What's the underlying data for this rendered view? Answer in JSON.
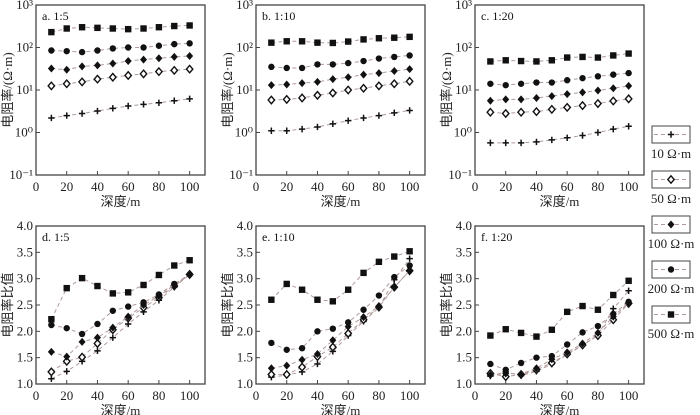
{
  "chart_data": [
    {
      "type": "line",
      "id": "a",
      "title": "a. 1:5",
      "xlabel": "深度/m",
      "ylabel": "电阻率/(Ω·m)",
      "yscale": "log",
      "xlim": [
        0,
        110
      ],
      "ylim": [
        0.1,
        1000
      ],
      "x": [
        10,
        20,
        30,
        40,
        50,
        60,
        70,
        80,
        90,
        100
      ],
      "xticks": [
        "0",
        "20",
        "40",
        "60",
        "80",
        "100"
      ],
      "yticks": [
        "10⁻¹",
        "10⁰",
        "10¹",
        "10²",
        "10³"
      ],
      "series": [
        {
          "name": "10 Ω·m",
          "marker": "plus",
          "values": [
            2.2,
            2.5,
            2.8,
            3.2,
            3.7,
            4.2,
            4.6,
            5.0,
            5.6,
            6.2
          ]
        },
        {
          "name": "50 Ω·m",
          "marker": "open-diamond",
          "values": [
            12.5,
            14,
            15.5,
            18,
            20,
            22,
            24,
            27,
            29,
            31
          ]
        },
        {
          "name": "100 Ω·m",
          "marker": "diamond",
          "values": [
            32,
            30,
            36,
            38,
            42,
            48,
            52,
            56,
            60,
            63
          ]
        },
        {
          "name": "200 Ω·m",
          "marker": "circle",
          "values": [
            85,
            82,
            78,
            85,
            95,
            100,
            100,
            110,
            120,
            125
          ]
        },
        {
          "name": "500 Ω·m",
          "marker": "square",
          "values": [
            230,
            280,
            300,
            290,
            280,
            270,
            280,
            300,
            320,
            330
          ]
        }
      ]
    },
    {
      "type": "line",
      "id": "b",
      "title": "b. 1:10",
      "xlabel": "深度/m",
      "ylabel": "电阻率/(Ω·m)",
      "yscale": "log",
      "xlim": [
        0,
        110
      ],
      "ylim": [
        0.1,
        1000
      ],
      "x": [
        10,
        20,
        30,
        40,
        50,
        60,
        70,
        80,
        90,
        100
      ],
      "xticks": [
        "0",
        "20",
        "40",
        "60",
        "80",
        "100"
      ],
      "yticks": [
        "10⁻¹",
        "10⁰",
        "10¹",
        "10²",
        "10³"
      ],
      "series": [
        {
          "name": "10 Ω·m",
          "marker": "plus",
          "values": [
            1.1,
            1.1,
            1.2,
            1.35,
            1.6,
            1.9,
            2.2,
            2.5,
            2.9,
            3.3
          ]
        },
        {
          "name": "50 Ω·m",
          "marker": "open-diamond",
          "values": [
            5.8,
            6,
            6.5,
            7.5,
            8.5,
            10,
            11,
            12.5,
            14,
            16
          ]
        },
        {
          "name": "100 Ω·m",
          "marker": "diamond",
          "values": [
            13,
            13.5,
            14.5,
            15.5,
            18,
            20,
            23,
            25,
            28,
            31
          ]
        },
        {
          "name": "200 Ω·m",
          "marker": "circle",
          "values": [
            35,
            33,
            33,
            40,
            40,
            43,
            48,
            55,
            60,
            65
          ]
        },
        {
          "name": "500 Ω·m",
          "marker": "square",
          "values": [
            130,
            140,
            140,
            130,
            128,
            138,
            155,
            165,
            170,
            178
          ]
        }
      ]
    },
    {
      "type": "line",
      "id": "c",
      "title": "c. 1:20",
      "xlabel": "深度/m",
      "ylabel": "电阻率/(Ω·m)",
      "yscale": "log",
      "xlim": [
        0,
        110
      ],
      "ylim": [
        0.1,
        1000
      ],
      "x": [
        10,
        20,
        30,
        40,
        50,
        60,
        70,
        80,
        90,
        100
      ],
      "xticks": [
        "0",
        "20",
        "40",
        "60",
        "80",
        "100"
      ],
      "yticks": [
        "10⁻¹",
        "10⁰",
        "10¹",
        "10²",
        "10³"
      ],
      "series": [
        {
          "name": "10 Ω·m",
          "marker": "plus",
          "values": [
            0.57,
            0.57,
            0.57,
            0.6,
            0.67,
            0.75,
            0.85,
            1.0,
            1.2,
            1.4
          ]
        },
        {
          "name": "50 Ω·m",
          "marker": "open-diamond",
          "values": [
            3,
            2.8,
            3,
            3.1,
            3.5,
            3.9,
            4.3,
            4.8,
            5.5,
            6.2
          ]
        },
        {
          "name": "100 Ω·m",
          "marker": "diamond",
          "values": [
            5.6,
            6,
            6,
            6.5,
            7.2,
            8,
            8.8,
            9.7,
            11,
            12.5
          ]
        },
        {
          "name": "200 Ω·m",
          "marker": "circle",
          "values": [
            14,
            13,
            14,
            15,
            15,
            17,
            19,
            21,
            23,
            25
          ]
        },
        {
          "name": "500 Ω·m",
          "marker": "square",
          "values": [
            47,
            50,
            48,
            47,
            50,
            58,
            60,
            58,
            65,
            72
          ]
        }
      ]
    },
    {
      "type": "line",
      "id": "d",
      "title": "d. 1:5",
      "xlabel": "深度/m",
      "ylabel": "电阻率比值",
      "yscale": "linear",
      "xlim": [
        0,
        110
      ],
      "ylim": [
        1.0,
        4.0
      ],
      "x": [
        10,
        20,
        30,
        40,
        50,
        60,
        70,
        80,
        90,
        100
      ],
      "xticks": [
        "0",
        "20",
        "40",
        "60",
        "80",
        "100"
      ],
      "yticks": [
        "1.0",
        "1.5",
        "2.0",
        "2.5",
        "3.0",
        "3.5",
        "4.0"
      ],
      "series": [
        {
          "name": "10 Ω·m",
          "marker": "plus",
          "values": [
            1.1,
            1.24,
            1.43,
            1.63,
            1.88,
            2.14,
            2.37,
            2.59,
            2.84,
            3.08
          ]
        },
        {
          "name": "50 Ω·m",
          "marker": "open-diamond",
          "values": [
            1.23,
            1.43,
            1.51,
            1.77,
            2.03,
            2.25,
            2.45,
            2.64,
            2.86,
            3.08
          ]
        },
        {
          "name": "100 Ω·m",
          "marker": "diamond",
          "values": [
            1.61,
            1.52,
            1.8,
            1.88,
            2.07,
            2.28,
            2.5,
            2.67,
            2.88,
            3.08
          ]
        },
        {
          "name": "200 Ω·m",
          "marker": "circle",
          "values": [
            2.12,
            2.06,
            1.95,
            2.14,
            2.39,
            2.47,
            2.55,
            2.7,
            2.9,
            3.08
          ]
        },
        {
          "name": "500 Ω·m",
          "marker": "square",
          "values": [
            2.23,
            2.82,
            3.01,
            2.86,
            2.72,
            2.74,
            2.88,
            3.07,
            3.25,
            3.35
          ]
        }
      ]
    },
    {
      "type": "line",
      "id": "e",
      "title": "e. 1:10",
      "xlabel": "深度/m",
      "ylabel": "电阻率比值",
      "yscale": "linear",
      "xlim": [
        0,
        110
      ],
      "ylim": [
        1.0,
        4.0
      ],
      "x": [
        10,
        20,
        30,
        40,
        50,
        60,
        70,
        80,
        90,
        100
      ],
      "xticks": [
        "0",
        "20",
        "40",
        "60",
        "80",
        "100"
      ],
      "yticks": [
        "1.0",
        "1.5",
        "2.0",
        "2.5",
        "3.0",
        "3.5",
        "4.0"
      ],
      "series": [
        {
          "name": "10 Ω·m",
          "marker": "plus",
          "values": [
            1.13,
            1.17,
            1.23,
            1.38,
            1.62,
            1.92,
            2.19,
            2.45,
            2.98,
            3.38
          ]
        },
        {
          "name": "50 Ω·m",
          "marker": "open-diamond",
          "values": [
            1.18,
            1.18,
            1.32,
            1.52,
            1.7,
            1.96,
            2.22,
            2.46,
            2.84,
            3.15
          ]
        },
        {
          "name": "100 Ω·m",
          "marker": "diamond",
          "values": [
            1.3,
            1.35,
            1.46,
            1.57,
            1.83,
            2.09,
            2.27,
            2.48,
            2.84,
            3.15
          ]
        },
        {
          "name": "200 Ω·m",
          "marker": "circle",
          "values": [
            1.78,
            1.65,
            1.68,
            2.0,
            2.05,
            2.17,
            2.41,
            2.68,
            3.03,
            3.25
          ]
        },
        {
          "name": "500 Ω·m",
          "marker": "square",
          "values": [
            2.6,
            2.9,
            2.79,
            2.6,
            2.57,
            2.79,
            3.11,
            3.32,
            3.42,
            3.52
          ]
        }
      ]
    },
    {
      "type": "line",
      "id": "f",
      "title": "f. 1:20",
      "xlabel": "深度/m",
      "ylabel": "电阻率比值",
      "yscale": "linear",
      "xlim": [
        0,
        110
      ],
      "ylim": [
        1.0,
        4.0
      ],
      "x": [
        10,
        20,
        30,
        40,
        50,
        60,
        70,
        80,
        90,
        100
      ],
      "xticks": [
        "0",
        "20",
        "40",
        "60",
        "80",
        "100"
      ],
      "yticks": [
        "1.0",
        "1.5",
        "2.0",
        "2.5",
        "3.0",
        "3.5",
        "4.0"
      ],
      "series": [
        {
          "name": "10 Ω·m",
          "marker": "plus",
          "values": [
            1.15,
            1.23,
            1.16,
            1.24,
            1.38,
            1.56,
            1.73,
            1.93,
            2.43,
            2.77
          ]
        },
        {
          "name": "50 Ω·m",
          "marker": "open-diamond",
          "values": [
            1.2,
            1.14,
            1.18,
            1.27,
            1.4,
            1.57,
            1.74,
            1.92,
            2.22,
            2.53
          ]
        },
        {
          "name": "100 Ω·m",
          "marker": "diamond",
          "values": [
            1.17,
            1.2,
            1.19,
            1.3,
            1.47,
            1.6,
            1.77,
            1.97,
            2.28,
            2.54
          ]
        },
        {
          "name": "200 Ω·m",
          "marker": "circle",
          "values": [
            1.38,
            1.27,
            1.4,
            1.5,
            1.53,
            1.75,
            1.98,
            2.1,
            2.33,
            2.56
          ]
        },
        {
          "name": "500 Ω·m",
          "marker": "square",
          "values": [
            1.92,
            2.04,
            1.97,
            1.9,
            2.03,
            2.37,
            2.48,
            2.41,
            2.69,
            2.96
          ]
        }
      ]
    }
  ],
  "legend": {
    "placement": "right",
    "items": [
      {
        "label": "10 Ω·m",
        "marker": "plus"
      },
      {
        "label": "50 Ω·m",
        "marker": "open-diamond"
      },
      {
        "label": "100 Ω·m",
        "marker": "diamond"
      },
      {
        "label": "200 Ω·m",
        "marker": "circle"
      },
      {
        "label": "500 Ω·m",
        "marker": "square"
      }
    ]
  },
  "colors": {
    "marker": "#111111",
    "line": "#b09a9a",
    "frame": "#444444"
  }
}
